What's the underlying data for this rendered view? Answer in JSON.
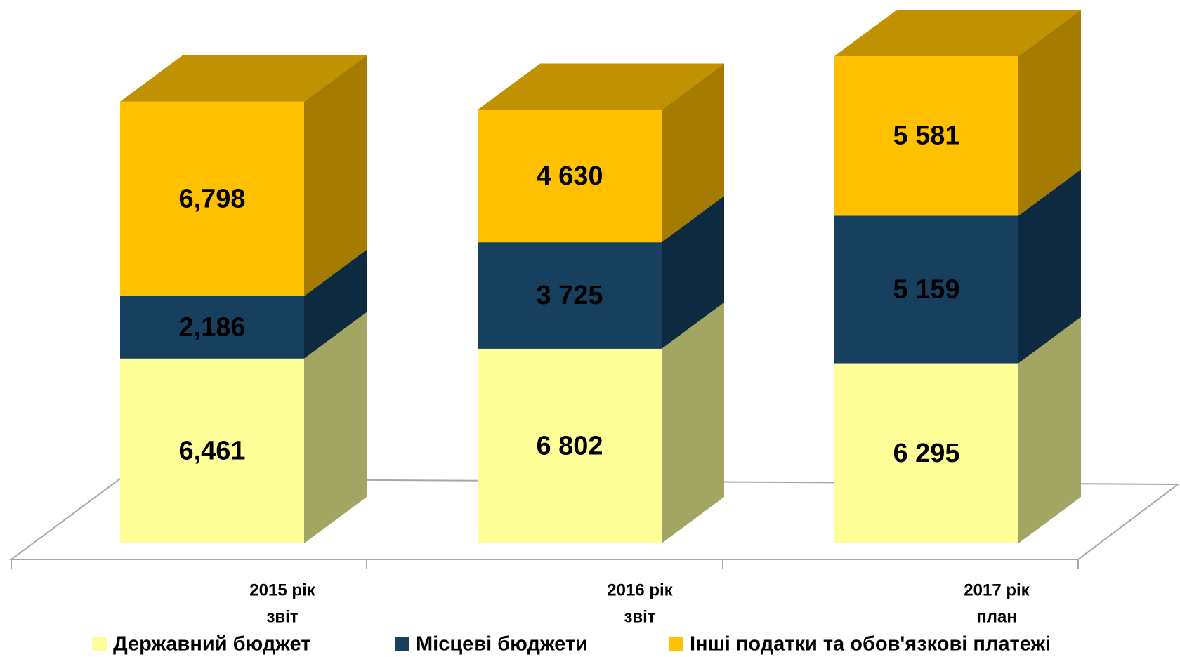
{
  "chart_data": {
    "type": "bar3d_stacked",
    "categories": [
      [
        "2015 рік",
        "звіт"
      ],
      [
        "2016 рік",
        "звіт"
      ],
      [
        "2017 рік",
        "план"
      ]
    ],
    "series": [
      {
        "name": "Державний бюджет",
        "color": "#FFFF99",
        "side": "#A3A562",
        "values": [
          6461,
          6802,
          6295
        ],
        "value_labels": [
          "6,461",
          "6 802",
          "6 295"
        ]
      },
      {
        "name": "Місцеві бюджети",
        "color": "#17405F",
        "side": "#0D2A40",
        "values": [
          2186,
          3725,
          5159
        ],
        "value_labels": [
          "2,186",
          "3 725",
          "5 159"
        ]
      },
      {
        "name": "Інші податки та обов'язкові платежі",
        "color": "#FFC000",
        "side": "#A67C00",
        "top": "#C09100",
        "values": [
          6798,
          4630,
          5581
        ],
        "value_labels": [
          "6,798",
          "4 630",
          "5 581"
        ]
      }
    ]
  }
}
